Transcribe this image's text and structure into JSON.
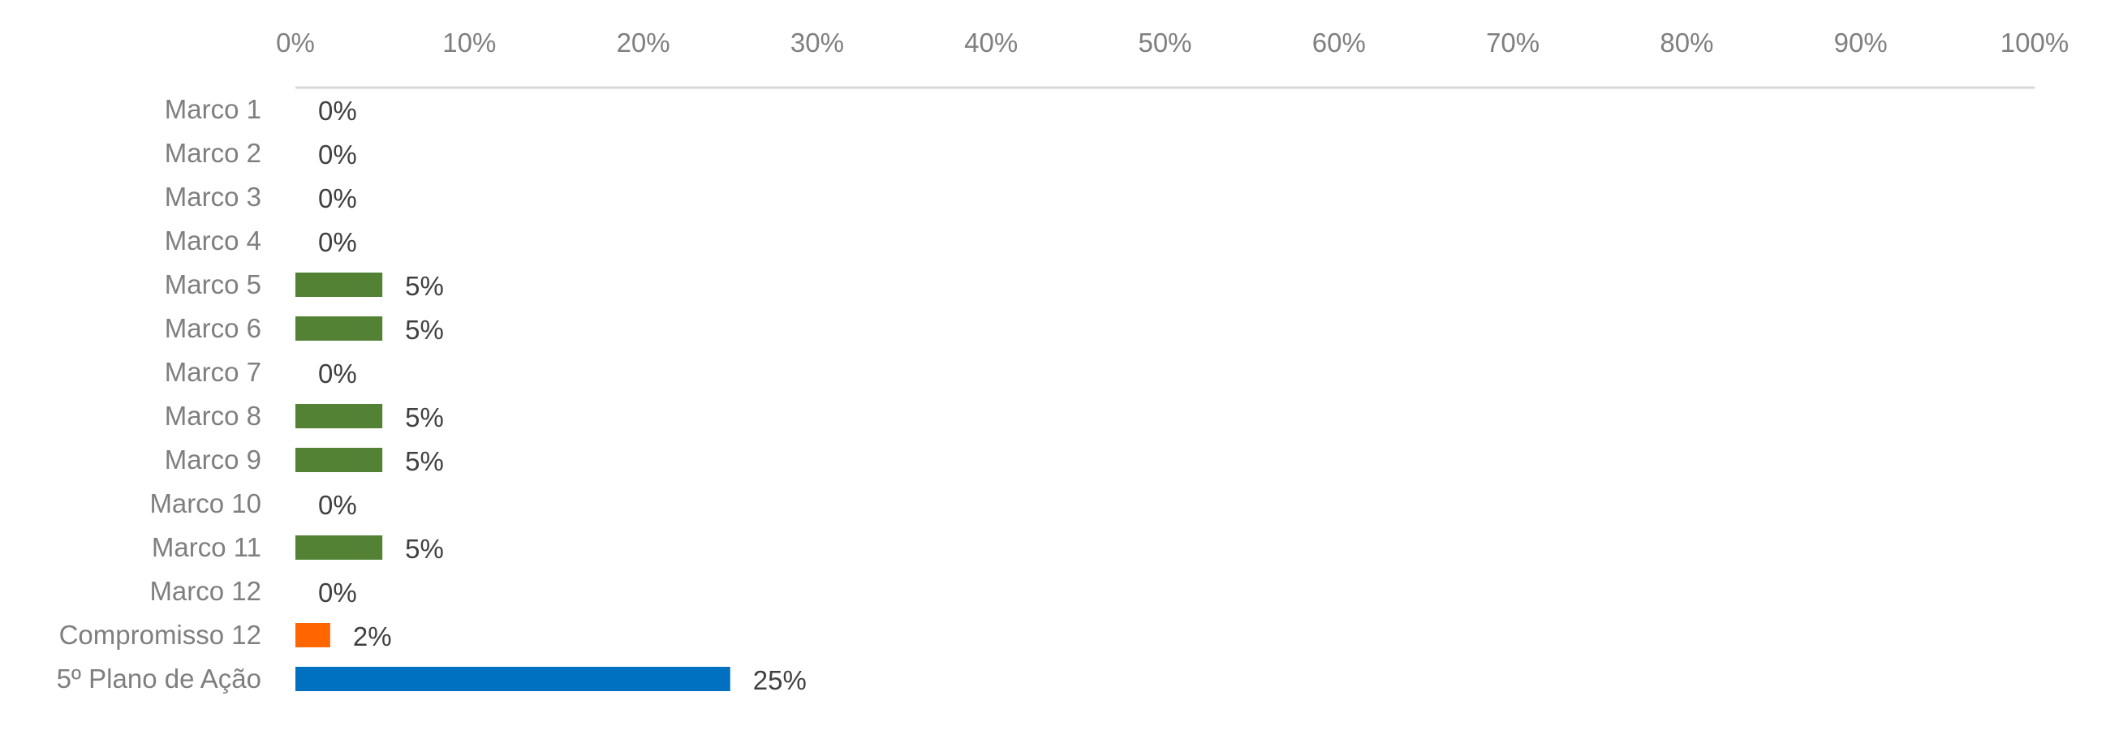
{
  "chart_data": {
    "type": "bar",
    "orientation": "horizontal",
    "title": "",
    "xlabel": "",
    "ylabel": "",
    "xlim": [
      0,
      100
    ],
    "x_ticks": [
      "0%",
      "10%",
      "20%",
      "30%",
      "40%",
      "50%",
      "60%",
      "70%",
      "80%",
      "90%",
      "100%"
    ],
    "x_axis_position": "top",
    "grid": false,
    "categories": [
      "Marco 1",
      "Marco 2",
      "Marco 3",
      "Marco 4",
      "Marco 5",
      "Marco 6",
      "Marco 7",
      "Marco 8",
      "Marco 9",
      "Marco 10",
      "Marco 11",
      "Marco 12",
      "Compromisso 12",
      "5º Plano de Ação"
    ],
    "values": [
      0,
      0,
      0,
      0,
      5,
      5,
      0,
      5,
      5,
      0,
      5,
      0,
      2,
      25
    ],
    "data_labels": [
      "0%",
      "0%",
      "0%",
      "0%",
      "5%",
      "5%",
      "0%",
      "5%",
      "5%",
      "0%",
      "5%",
      "0%",
      "2%",
      "25%"
    ],
    "colors": [
      "#548235",
      "#548235",
      "#548235",
      "#548235",
      "#548235",
      "#548235",
      "#548235",
      "#548235",
      "#548235",
      "#548235",
      "#548235",
      "#548235",
      "#FF6600",
      "#0070C0"
    ]
  }
}
